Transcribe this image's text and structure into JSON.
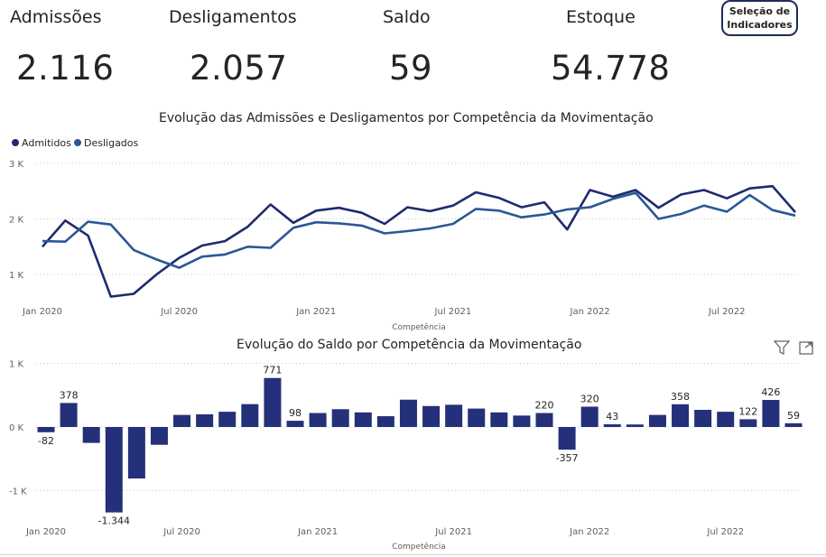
{
  "kpis": {
    "admissoes": {
      "label": "Admissões",
      "value": "2.116"
    },
    "desligamentos": {
      "label": "Desligamentos",
      "value": "2.057"
    },
    "saldo": {
      "label": "Saldo",
      "value": "59"
    },
    "estoque": {
      "label": "Estoque",
      "value": "54.778"
    }
  },
  "selection_button": {
    "line1": "Seleção de",
    "line2": "Indicadores"
  },
  "colors": {
    "admitidos": "#1f2a6e",
    "desligados": "#2b5797",
    "saldo_bar": "#24307a"
  },
  "chart_data": [
    {
      "type": "line",
      "title": "Evolução das Admissões e Desligamentos por Competência da Movimentação",
      "xlabel": "Competência",
      "ylabel": "",
      "ylim": [
        0.45,
        3
      ],
      "yticks": [
        {
          "v": 3,
          "label": "3 K"
        },
        {
          "v": 2,
          "label": "2 K"
        },
        {
          "v": 1,
          "label": "1 K"
        }
      ],
      "xticks": [
        {
          "i": 0,
          "label": "Jan 2020"
        },
        {
          "i": 6,
          "label": "Jul 2020"
        },
        {
          "i": 12,
          "label": "Jan 2021"
        },
        {
          "i": 18,
          "label": "Jul 2021"
        },
        {
          "i": 24,
          "label": "Jan 2022"
        },
        {
          "i": 30,
          "label": "Jul 2022"
        }
      ],
      "legend": "top-left",
      "series": [
        {
          "name": "Admitidos",
          "values": [
            1.5,
            1.97,
            1.7,
            0.6,
            0.65,
            1.0,
            1.3,
            1.52,
            1.6,
            1.86,
            2.26,
            1.93,
            2.15,
            2.2,
            2.11,
            1.91,
            2.21,
            2.14,
            2.24,
            2.48,
            2.38,
            2.21,
            2.3,
            1.81,
            2.52,
            2.4,
            2.52,
            2.2,
            2.44,
            2.52,
            2.37,
            2.55,
            2.59,
            2.12
          ]
        },
        {
          "name": "Desligados",
          "values": [
            1.6,
            1.59,
            1.95,
            1.9,
            1.44,
            1.27,
            1.12,
            1.32,
            1.36,
            1.5,
            1.48,
            1.84,
            1.94,
            1.92,
            1.88,
            1.74,
            1.78,
            1.83,
            1.91,
            2.18,
            2.15,
            2.03,
            2.08,
            2.17,
            2.21,
            2.36,
            2.47,
            2.0,
            2.09,
            2.24,
            2.13,
            2.43,
            2.16,
            2.06
          ]
        }
      ]
    },
    {
      "type": "bar",
      "title": "Evolução do Saldo por Competência da Movimentação",
      "xlabel": "Competência",
      "ylabel": "",
      "ylim": [
        -1.45,
        1.0
      ],
      "yticks": [
        {
          "v": 1000,
          "label": "1 K"
        },
        {
          "v": 0,
          "label": "0 K"
        },
        {
          "v": -1000,
          "label": "-1 K"
        }
      ],
      "xticks": [
        {
          "i": 0,
          "label": "Jan 2020"
        },
        {
          "i": 6,
          "label": "Jul 2020"
        },
        {
          "i": 12,
          "label": "Jan 2021"
        },
        {
          "i": 18,
          "label": "Jul 2021"
        },
        {
          "i": 24,
          "label": "Jan 2022"
        },
        {
          "i": 30,
          "label": "Jul 2022"
        }
      ],
      "values": [
        -82,
        378,
        -250,
        -1344,
        -810,
        -280,
        190,
        200,
        240,
        360,
        771,
        98,
        220,
        280,
        230,
        170,
        430,
        330,
        350,
        290,
        230,
        180,
        220,
        -357,
        320,
        43,
        40,
        190,
        358,
        270,
        240,
        122,
        426,
        59
      ],
      "labels": [
        "-82",
        "378",
        "",
        "-1.344",
        "",
        "",
        "",
        "",
        "",
        "",
        "771",
        "98",
        "",
        "",
        "",
        "",
        "",
        "",
        "",
        "",
        "",
        "",
        "220",
        "-357",
        "320",
        "43",
        "",
        "",
        "358",
        "",
        "",
        "122",
        "426",
        "59"
      ]
    }
  ]
}
